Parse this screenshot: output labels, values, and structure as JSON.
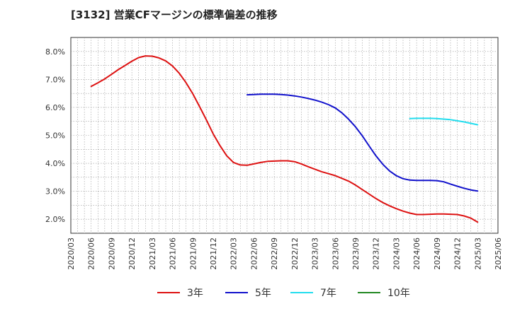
{
  "chart_data": {
    "type": "line",
    "title": "[3132]  営業CFマージンの標準偏差の推移",
    "xlabel": "",
    "ylabel": "",
    "x_ticks": [
      "2020/03",
      "2020/06",
      "2020/09",
      "2020/12",
      "2021/03",
      "2021/06",
      "2021/09",
      "2021/12",
      "2022/03",
      "2022/06",
      "2022/09",
      "2022/12",
      "2023/03",
      "2023/06",
      "2023/09",
      "2023/12",
      "2024/03",
      "2024/06",
      "2024/09",
      "2024/12",
      "2025/03",
      "2025/06"
    ],
    "y_ticks": [
      "2.0%",
      "3.0%",
      "4.0%",
      "5.0%",
      "6.0%",
      "7.0%",
      "8.0%"
    ],
    "ylim": [
      1.5,
      8.5
    ],
    "grid": true,
    "legend": "bottom",
    "series": [
      {
        "name": "3年",
        "color": "#dd1111",
        "points": [
          [
            "2020/06",
            6.75
          ],
          [
            "2020/07",
            6.88
          ],
          [
            "2020/08",
            7.02
          ],
          [
            "2020/09",
            7.18
          ],
          [
            "2020/10",
            7.35
          ],
          [
            "2020/11",
            7.5
          ],
          [
            "2020/12",
            7.65
          ],
          [
            "2021/01",
            7.78
          ],
          [
            "2021/02",
            7.84
          ],
          [
            "2021/03",
            7.83
          ],
          [
            "2021/04",
            7.77
          ],
          [
            "2021/05",
            7.66
          ],
          [
            "2021/06",
            7.48
          ],
          [
            "2021/07",
            7.22
          ],
          [
            "2021/08",
            6.88
          ],
          [
            "2021/09",
            6.48
          ],
          [
            "2021/10",
            6.02
          ],
          [
            "2021/11",
            5.55
          ],
          [
            "2021/12",
            5.05
          ],
          [
            "2022/01",
            4.63
          ],
          [
            "2022/02",
            4.27
          ],
          [
            "2022/03",
            4.03
          ],
          [
            "2022/04",
            3.94
          ],
          [
            "2022/05",
            3.93
          ],
          [
            "2022/06",
            3.98
          ],
          [
            "2022/07",
            4.03
          ],
          [
            "2022/08",
            4.07
          ],
          [
            "2022/09",
            4.08
          ],
          [
            "2022/10",
            4.09
          ],
          [
            "2022/11",
            4.09
          ],
          [
            "2022/12",
            4.06
          ],
          [
            "2023/01",
            3.98
          ],
          [
            "2023/02",
            3.88
          ],
          [
            "2023/03",
            3.79
          ],
          [
            "2023/04",
            3.7
          ],
          [
            "2023/05",
            3.63
          ],
          [
            "2023/06",
            3.56
          ],
          [
            "2023/07",
            3.46
          ],
          [
            "2023/08",
            3.36
          ],
          [
            "2023/09",
            3.22
          ],
          [
            "2023/10",
            3.06
          ],
          [
            "2023/11",
            2.9
          ],
          [
            "2023/12",
            2.74
          ],
          [
            "2024/01",
            2.6
          ],
          [
            "2024/02",
            2.48
          ],
          [
            "2024/03",
            2.38
          ],
          [
            "2024/04",
            2.29
          ],
          [
            "2024/05",
            2.22
          ],
          [
            "2024/06",
            2.17
          ],
          [
            "2024/07",
            2.17
          ],
          [
            "2024/08",
            2.18
          ],
          [
            "2024/09",
            2.19
          ],
          [
            "2024/10",
            2.19
          ],
          [
            "2024/11",
            2.18
          ],
          [
            "2024/12",
            2.17
          ],
          [
            "2025/01",
            2.12
          ],
          [
            "2025/02",
            2.04
          ],
          [
            "2025/03",
            1.9
          ]
        ]
      },
      {
        "name": "5年",
        "color": "#1111cc",
        "points": [
          [
            "2022/05",
            6.45
          ],
          [
            "2022/06",
            6.46
          ],
          [
            "2022/07",
            6.47
          ],
          [
            "2022/08",
            6.47
          ],
          [
            "2022/09",
            6.47
          ],
          [
            "2022/10",
            6.46
          ],
          [
            "2022/11",
            6.44
          ],
          [
            "2022/12",
            6.41
          ],
          [
            "2023/01",
            6.37
          ],
          [
            "2023/02",
            6.32
          ],
          [
            "2023/03",
            6.26
          ],
          [
            "2023/04",
            6.19
          ],
          [
            "2023/05",
            6.1
          ],
          [
            "2023/06",
            5.98
          ],
          [
            "2023/07",
            5.8
          ],
          [
            "2023/08",
            5.57
          ],
          [
            "2023/09",
            5.3
          ],
          [
            "2023/10",
            4.98
          ],
          [
            "2023/11",
            4.62
          ],
          [
            "2023/12",
            4.27
          ],
          [
            "2024/01",
            3.97
          ],
          [
            "2024/02",
            3.73
          ],
          [
            "2024/03",
            3.56
          ],
          [
            "2024/04",
            3.45
          ],
          [
            "2024/05",
            3.4
          ],
          [
            "2024/06",
            3.39
          ],
          [
            "2024/07",
            3.39
          ],
          [
            "2024/08",
            3.39
          ],
          [
            "2024/09",
            3.38
          ],
          [
            "2024/10",
            3.34
          ],
          [
            "2024/11",
            3.26
          ],
          [
            "2024/12",
            3.18
          ],
          [
            "2025/01",
            3.11
          ],
          [
            "2025/02",
            3.05
          ],
          [
            "2025/03",
            3.01
          ]
        ]
      },
      {
        "name": "7年",
        "color": "#22ddee",
        "points": [
          [
            "2024/05",
            5.6
          ],
          [
            "2024/06",
            5.61
          ],
          [
            "2024/07",
            5.61
          ],
          [
            "2024/08",
            5.61
          ],
          [
            "2024/09",
            5.6
          ],
          [
            "2024/10",
            5.58
          ],
          [
            "2024/11",
            5.56
          ],
          [
            "2024/12",
            5.52
          ],
          [
            "2025/01",
            5.48
          ],
          [
            "2025/02",
            5.43
          ],
          [
            "2025/03",
            5.38
          ]
        ]
      },
      {
        "name": "10年",
        "color": "#228822",
        "points": []
      }
    ]
  }
}
